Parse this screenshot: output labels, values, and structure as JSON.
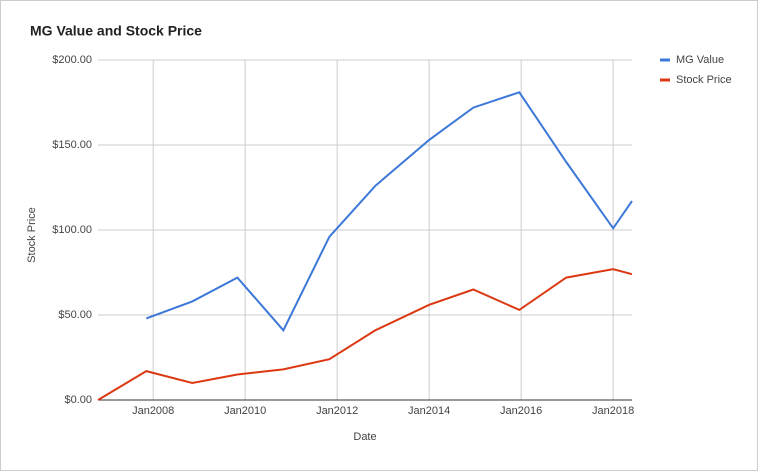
{
  "chart_data": {
    "type": "line",
    "title": "MG Value and Stock Price",
    "x_label": "Date",
    "y_label": "Stock Price",
    "x": [
      2006.8,
      2007.85,
      2008.85,
      2009.83,
      2010.83,
      2011.83,
      2012.83,
      2014.0,
      2014.96,
      2015.96,
      2016.98,
      2018.0,
      2018.41
    ],
    "series": [
      {
        "name": "MG Value",
        "color": "#3c78d8",
        "values": [
          null,
          48,
          58,
          72,
          41,
          96,
          126,
          153,
          172,
          181,
          140,
          101,
          117
        ]
      },
      {
        "name": "Stock Price",
        "color": "#dc3912",
        "values": [
          0,
          17,
          10,
          15,
          18,
          24,
          41,
          56,
          65,
          53,
          72,
          77,
          74
        ]
      }
    ],
    "xlim": [
      2006.8,
      2018.41
    ],
    "xticks": [
      {
        "value": 2008,
        "label": "Jan2008"
      },
      {
        "value": 2010,
        "label": "Jan2010"
      },
      {
        "value": 2012,
        "label": "Jan2012"
      },
      {
        "value": 2014,
        "label": "Jan2014"
      },
      {
        "value": 2016,
        "label": "Jan2016"
      },
      {
        "value": 2018,
        "label": "Jan2018"
      }
    ],
    "ylim": [
      0,
      200
    ],
    "yticks": [
      {
        "value": 0,
        "label": "$0.00"
      },
      {
        "value": 50,
        "label": "$50.00"
      },
      {
        "value": 100,
        "label": "$100.00"
      },
      {
        "value": 150,
        "label": "$150.00"
      },
      {
        "value": 200,
        "label": "$200.00"
      }
    ],
    "grid": true,
    "legend": "right"
  }
}
